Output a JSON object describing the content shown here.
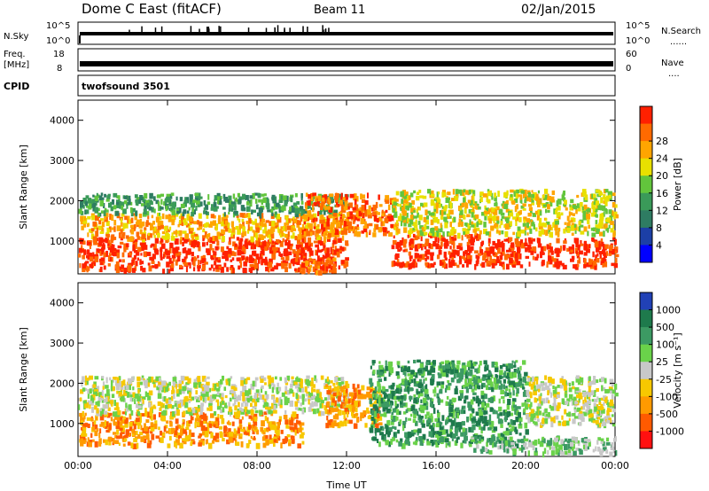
{
  "header": {
    "station": "Dome C East (fitACF)",
    "beam": "Beam 11",
    "date": "02/Jan/2015"
  },
  "labels": {
    "nsky": "N.Sky",
    "nsearch": "N.Search",
    "freq_line1": "Freq.",
    "freq_line2": "[MHz]",
    "nave": "Nave",
    "cpid": "CPID",
    "cpid_value": "twofsound 3501",
    "nsky_ticks": [
      "10^5",
      "10^0"
    ],
    "nsearch_ticks": [
      "10^5",
      "10^0"
    ],
    "freq_ticks": [
      "18",
      "8"
    ],
    "nave_ticks": [
      "60",
      "0"
    ],
    "leader_dots": "......",
    "leader_dots_short": "...."
  },
  "colors": {
    "power": [
      "#0000ff",
      "#1c3fa6",
      "#2e7c62",
      "#3a9a59",
      "#62c53c",
      "#e8e000",
      "#ffa500",
      "#ff6a00",
      "#ff2000"
    ],
    "velocity": [
      "#2141b6",
      "#1e7a4c",
      "#3c9a63",
      "#6ad24a",
      "#c8c8c8",
      "#f7c800",
      "#ff9a00",
      "#ff5a00",
      "#ff1010"
    ]
  },
  "chart_data": [
    {
      "type": "heatmap",
      "name": "power",
      "ylabel": "Slant Range [km]",
      "ylim": [
        180,
        4500
      ],
      "yticks": [
        "1000",
        "2000",
        "3000",
        "4000"
      ],
      "xticks": [
        "00:00",
        "04:00",
        "08:00",
        "12:00",
        "16:00",
        "20:00",
        "00:00"
      ],
      "colorbar_label": "Power [dB]",
      "colorbar_ticks": [
        "4",
        "8",
        "12",
        "16",
        "20",
        "24",
        "28"
      ],
      "bands": [
        {
          "t0": 0.0,
          "t1": 12.0,
          "r0": 300,
          "r1": 1100,
          "level": 8
        },
        {
          "t0": 0.0,
          "t1": 12.0,
          "r0": 1100,
          "r1": 1700,
          "level": 6
        },
        {
          "t0": 0.0,
          "t1": 12.0,
          "r0": 1700,
          "r1": 2200,
          "level": 3
        },
        {
          "t0": 10.0,
          "t1": 14.0,
          "r0": 1200,
          "r1": 2200,
          "level": 7
        },
        {
          "t0": 14.0,
          "t1": 18.0,
          "r0": 400,
          "r1": 1200,
          "level": 8
        },
        {
          "t0": 14.0,
          "t1": 24.0,
          "r0": 1200,
          "r1": 2300,
          "level": 5
        },
        {
          "t0": 18.0,
          "t1": 24.0,
          "r0": 400,
          "r1": 1100,
          "level": 8
        },
        {
          "t0": 9.5,
          "t1": 11.5,
          "r0": 250,
          "r1": 600,
          "level": 7
        }
      ]
    },
    {
      "type": "heatmap",
      "name": "velocity",
      "ylabel": "Slant Range [km]",
      "ylim": [
        180,
        4500
      ],
      "yticks": [
        "1000",
        "2000",
        "3000",
        "4000"
      ],
      "xticks": [
        "00:00",
        "04:00",
        "08:00",
        "12:00",
        "16:00",
        "20:00",
        "00:00"
      ],
      "xlabel": "Time UT",
      "colorbar_label": "Velocity [m s⁻¹]",
      "colorbar_ticks": [
        "1000",
        "500",
        "100",
        "25",
        "-25",
        "-100",
        "-500",
        "-1000"
      ],
      "bands": [
        {
          "t0": 0.0,
          "t1": 10.0,
          "r0": 500,
          "r1": 1300,
          "level": 6
        },
        {
          "t0": 0.0,
          "t1": 12.0,
          "r0": 1300,
          "r1": 2200,
          "level": 4
        },
        {
          "t0": 11.0,
          "t1": 13.5,
          "r0": 1000,
          "r1": 2000,
          "level": 6
        },
        {
          "t0": 13.0,
          "t1": 20.0,
          "r0": 500,
          "r1": 2600,
          "level": 2
        },
        {
          "t0": 20.0,
          "t1": 24.0,
          "r0": 1000,
          "r1": 2200,
          "level": 4
        },
        {
          "t0": 17.5,
          "t1": 24.0,
          "r0": 300,
          "r1": 700,
          "level": 3
        }
      ]
    }
  ]
}
